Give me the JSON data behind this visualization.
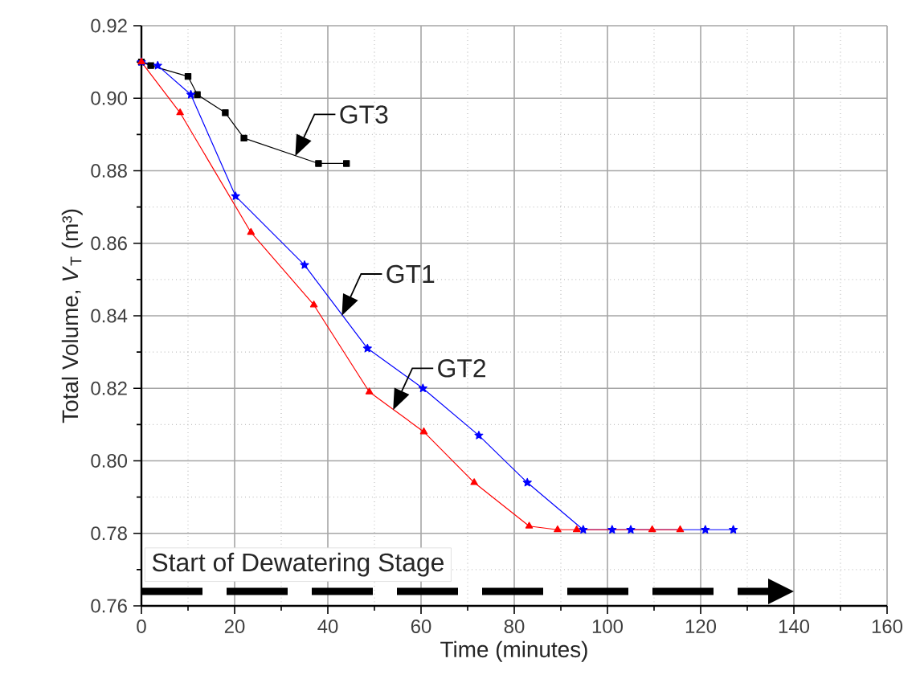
{
  "chart_data": {
    "type": "line",
    "xlabel": "Time (minutes)",
    "ylabel": "Total Volume, *V*$_{T}$ (m³)",
    "xlim": [
      0,
      160
    ],
    "ylim": [
      0.76,
      0.92
    ],
    "xticks": [
      0,
      {
        "value": 10,
        "label": null
      },
      20,
      {
        "value": 30,
        "label": null
      },
      40,
      {
        "value": 50,
        "label": null
      },
      60,
      {
        "value": 70,
        "label": null
      },
      80,
      {
        "value": 90,
        "label": null
      },
      100,
      {
        "value": 110,
        "label": null
      },
      120,
      {
        "value": 130,
        "label": null
      },
      140,
      {
        "value": 150,
        "label": null
      },
      160
    ],
    "yticks": [
      0.76,
      {
        "value": 0.77,
        "label": null
      },
      0.78,
      {
        "value": 0.79,
        "label": null
      },
      {
        "value": 0.8,
        "label": "0.80"
      },
      {
        "value": 0.81,
        "label": null
      },
      0.82,
      {
        "value": 0.83,
        "label": null
      },
      0.84,
      {
        "value": 0.85,
        "label": null
      },
      0.86,
      {
        "value": 0.87,
        "label": null
      },
      0.88,
      {
        "value": 0.89,
        "label": null
      },
      {
        "value": 0.9,
        "label": "0.90"
      },
      {
        "value": 0.91,
        "label": null
      },
      0.92
    ],
    "grid": true,
    "line_style": "solid",
    "series": [
      {
        "color": "#000000",
        "marker": "square",
        "x": [
          0,
          2,
          10,
          12,
          18,
          22,
          38,
          44
        ],
        "values": [
          0.91,
          0.909,
          0.906,
          0.901,
          0.896,
          0.889,
          0.882,
          0.882
        ]
      },
      {
        "color": "#0000ff",
        "marker": "star",
        "x": [
          0,
          3.5,
          10.6,
          20.2,
          35,
          48.5,
          60.4,
          72.4,
          82.8,
          94.8,
          101,
          105,
          121,
          127
        ],
        "values": [
          0.91,
          0.909,
          0.901,
          0.873,
          0.854,
          0.831,
          0.82,
          0.807,
          0.794,
          0.781,
          0.781,
          0.781,
          0.781,
          0.781
        ]
      },
      {
        "color": "#ff0000",
        "marker": "triangle",
        "x": [
          0,
          8.3,
          23.5,
          37,
          48.9,
          60.6,
          71.4,
          83.2,
          89.3,
          93.4,
          109.6,
          115.6
        ],
        "values": [
          0.91,
          0.896,
          0.863,
          0.843,
          0.819,
          0.808,
          0.794,
          0.782,
          0.781,
          0.781,
          0.781,
          0.781
        ]
      }
    ],
    "annotations": [
      {
        "text": "GT3",
        "x": 33,
        "y": 0.884
      },
      {
        "text": "GT1",
        "x": 43,
        "y": 0.84
      },
      {
        "text": "GT2",
        "x": 54,
        "y": 0.814
      }
    ],
    "ref_lines": [
      {
        "axis": "y",
        "value": 0.764,
        "label": "Start of Dewatering Stage",
        "line_style": "dashed",
        "color": "#000000"
      }
    ]
  }
}
